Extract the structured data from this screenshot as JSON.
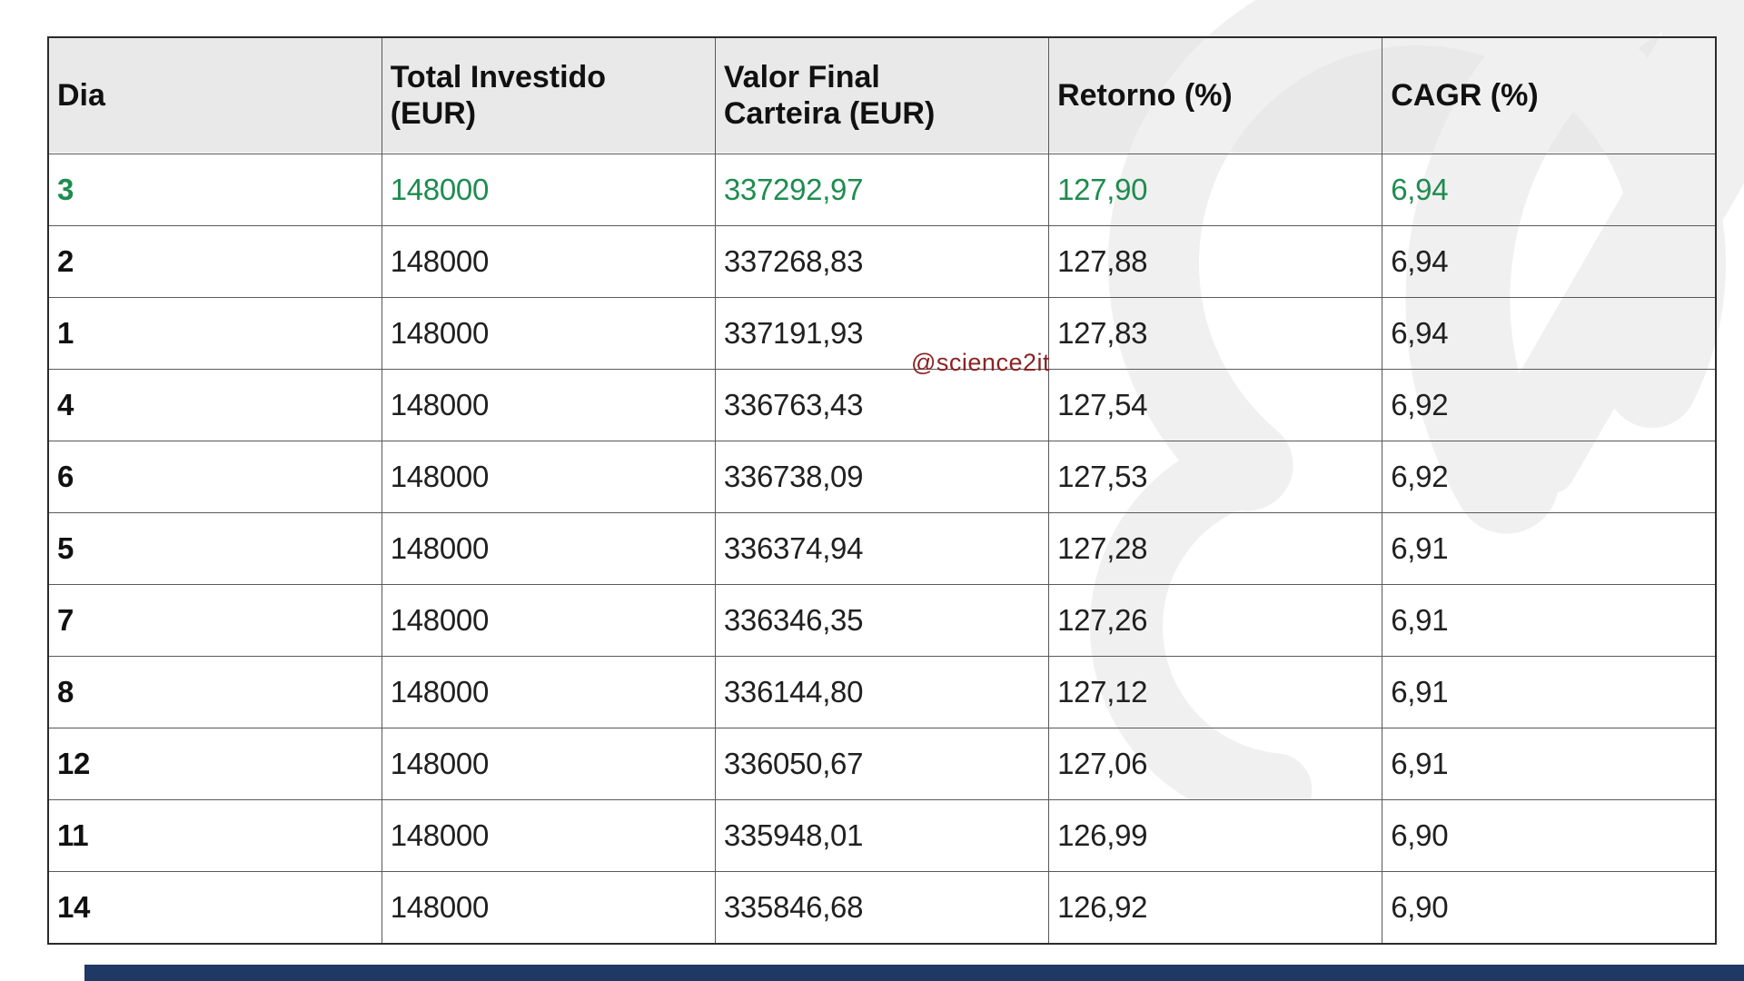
{
  "chart_data": {
    "type": "table",
    "title": "",
    "columns": [
      "Dia",
      "Total Investido (EUR)",
      "Valor Final Carteira (EUR)",
      "Retorno (%)",
      "CAGR (%)"
    ],
    "rows": [
      [
        "3",
        "148000",
        "337292,97",
        "127,90",
        "6,94"
      ],
      [
        "2",
        "148000",
        "337268,83",
        "127,88",
        "6,94"
      ],
      [
        "1",
        "148000",
        "337191,93",
        "127,83",
        "6,94"
      ],
      [
        "4",
        "148000",
        "336763,43",
        "127,54",
        "6,92"
      ],
      [
        "6",
        "148000",
        "336738,09",
        "127,53",
        "6,92"
      ],
      [
        "5",
        "148000",
        "336374,94",
        "127,28",
        "6,91"
      ],
      [
        "7",
        "148000",
        "336346,35",
        "127,26",
        "6,91"
      ],
      [
        "8",
        "148000",
        "336144,80",
        "127,12",
        "6,91"
      ],
      [
        "12",
        "148000",
        "336050,67",
        "127,06",
        "6,91"
      ],
      [
        "11",
        "148000",
        "335948,01",
        "126,99",
        "6,90"
      ],
      [
        "14",
        "148000",
        "335846,68",
        "126,92",
        "6,90"
      ]
    ],
    "highlighted_row_index": 0,
    "layout": {
      "grid": "on",
      "header_background": "#e9e9e9"
    }
  },
  "watermark": {
    "handle_text": "@science2it",
    "handle_color": "#8b2323",
    "logo_color": "#f0f0f0"
  },
  "colors": {
    "highlight_green": "#1e8c4f",
    "footer_navy": "#1f3864"
  }
}
